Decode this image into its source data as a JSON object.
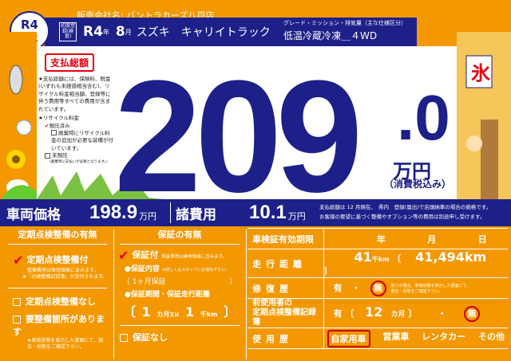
{
  "header": {
    "dealer_label": "販売会社名:",
    "dealer_name": "バントラカーズ八戸店",
    "model_year": "R4",
    "model_year_suffix": "年式",
    "first_registration_label": "初度登録(検査)",
    "reg_year": "R4",
    "reg_year_unit": "年",
    "reg_month": "8",
    "reg_month_unit": "月",
    "maker": "スズキ",
    "model": "キャリイトラック",
    "grade_label": "グレード・ミッション・排気量（主な仕様区分）",
    "grade": "低温冷蔵冷凍＿４WD"
  },
  "total": {
    "heading": "支払総額",
    "price_main": "209",
    "price_decimal": ".0",
    "unit": "万円",
    "tax_note": "（消費税込み）",
    "note": "★支払総額には、保険料、税金(いずれも未経過相当含む)、リサイクル料金相当額、登録等に伴う費用等すべての費用が含まれています。",
    "recycle_label": "★リサイクル料金",
    "recycle_deposited": "預託済み",
    "recycle_extra": "廃棄時にリサイクル料金の追加が必要な装備が付いています。",
    "recycle_not": "未預託",
    "recycle_not_note": "(廃棄時に支払いが必要となります。)"
  },
  "breakdown": {
    "vehicle_label": "車両価格",
    "vehicle_price": "198.9",
    "fees_label": "諸費用",
    "fees": "10.1",
    "unit": "万円",
    "note1": "支払総額は 12 月現在、　県内　登録(届出)で店頭納車の場合の価格です。",
    "note2": "お客様の要望に基づく整備やオプション等の費用は別途申し受けます。"
  },
  "inspection": {
    "heading": "定期点検整備の有無",
    "with": "定期点検整備付",
    "with_note1": "整備費用は車両価格に含みます。",
    "with_note2": "★「点検整備記録簿」が交付されます。",
    "without": "定期点検整備なし",
    "needs": "要整備箇所があります",
    "needs_note": "★車両状態を表示した書面にて、部位・状態をご確認下さい。"
  },
  "warranty": {
    "heading": "保証の有無",
    "with": "保証付",
    "with_note": "保証費用は車両価格に含みます。",
    "content_label": "●保証内容",
    "content_note": "※詳しくはスタッフにお尋ね下さい。",
    "content": "1ヶ月保証",
    "period_label": "●保証期間・保証走行距離",
    "months": "1",
    "months_unit": "カ月",
    "or": "又は",
    "km": "1",
    "km_unit": "千km",
    "none": "保証なし"
  },
  "details": {
    "shaken_label": "車検証有効期限",
    "shaken_y": "年",
    "shaken_m": "月",
    "shaken_d": "日",
    "mileage_label": "走行距離",
    "mileage_k": "41",
    "mileage_k_unit": "千km",
    "mileage_exact": "41,494km",
    "repair_label": "修復歴",
    "yes": "有",
    "no": "無",
    "repair_note": "有りの場合、車両状態を表示した書面にて、部位・状態をご確認下さい。",
    "record_label1": "前使用者の",
    "record_label2": "定期点検整備記録簿",
    "record_months": "12",
    "record_unit": "カ月",
    "usage_label": "使用歴",
    "usage": [
      "自家用車",
      "営業車",
      "レンタカー",
      "その他"
    ],
    "usage_selected": "自家用車"
  },
  "colors": {
    "orange": "#f39800",
    "navy": "#1d2088",
    "red": "#e60012"
  }
}
